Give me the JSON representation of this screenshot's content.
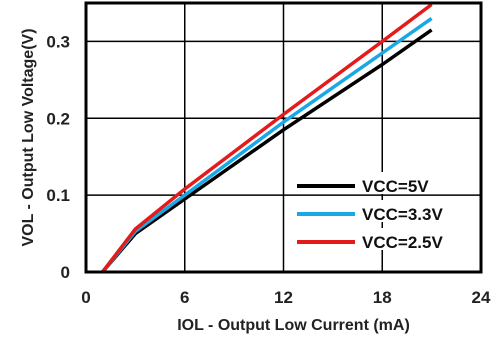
{
  "chart_data": {
    "type": "line",
    "title": "",
    "xlabel": "IOL - Output Low Current (mA)",
    "ylabel": "VOL - Output Low Voltage(V)",
    "xlim": [
      0,
      24
    ],
    "ylim": [
      0,
      0.35
    ],
    "x_ticks": [
      0,
      6,
      12,
      18,
      24
    ],
    "x_tick_labels": [
      "0",
      "6",
      "12",
      "18",
      "24"
    ],
    "y_ticks": [
      0,
      0.1,
      0.2,
      0.3
    ],
    "y_tick_labels": [
      "0",
      "0.1",
      "0.2",
      "0.3"
    ],
    "grid": true,
    "legend_position": "bottom-right",
    "series": [
      {
        "name": "VCC=5V",
        "color": "#000000",
        "x": [
          1,
          3,
          6,
          12,
          18,
          21
        ],
        "y": [
          0,
          0.05,
          0.095,
          0.185,
          0.27,
          0.315
        ]
      },
      {
        "name": "VCC=3.3V",
        "color": "#1aa7e6",
        "x": [
          1,
          3,
          6,
          12,
          18,
          21
        ],
        "y": [
          0,
          0.053,
          0.1,
          0.195,
          0.285,
          0.33
        ]
      },
      {
        "name": "VCC=2.5V",
        "color": "#e31b1b",
        "x": [
          1,
          3,
          6,
          12,
          18,
          21
        ],
        "y": [
          0,
          0.056,
          0.108,
          0.205,
          0.3,
          0.348
        ]
      }
    ]
  }
}
